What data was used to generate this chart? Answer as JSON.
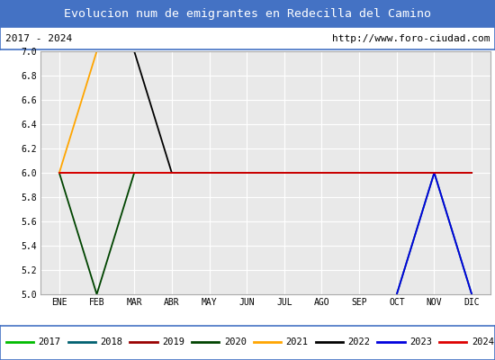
{
  "title": "Evolucion num de emigrantes en Redecilla del Camino",
  "subtitle_left": "2017 - 2024",
  "subtitle_right": "http://www.foro-ciudad.com",
  "x_labels": [
    "ENE",
    "FEB",
    "MAR",
    "ABR",
    "MAY",
    "JUN",
    "JUL",
    "AGO",
    "SEP",
    "OCT",
    "NOV",
    "DIC"
  ],
  "ylim": [
    5.0,
    7.0
  ],
  "yticks": [
    5.0,
    5.2,
    5.4,
    5.6,
    5.8,
    6.0,
    6.2,
    6.4,
    6.6,
    6.8,
    7.0
  ],
  "series": [
    {
      "label": "2017",
      "color": "#00bb00",
      "data": [
        [
          0,
          6
        ],
        [
          11,
          6
        ]
      ]
    },
    {
      "label": "2018",
      "color": "#006070",
      "data": [
        [
          9,
          5
        ],
        [
          10,
          6
        ],
        [
          11,
          5
        ]
      ]
    },
    {
      "label": "2019",
      "color": "#990000",
      "data": [
        [
          0,
          6
        ],
        [
          11,
          6
        ]
      ]
    },
    {
      "label": "2020",
      "color": "#004400",
      "data": [
        [
          0,
          6
        ],
        [
          1,
          5
        ],
        [
          2,
          6
        ]
      ]
    },
    {
      "label": "2021",
      "color": "#FFA500",
      "data": [
        [
          0,
          6
        ],
        [
          1,
          7
        ],
        [
          11,
          7
        ]
      ]
    },
    {
      "label": "2022",
      "color": "#000000",
      "data": [
        [
          2,
          7
        ],
        [
          3,
          6
        ],
        [
          11,
          6
        ]
      ]
    },
    {
      "label": "2023",
      "color": "#0000dd",
      "data": [
        [
          9,
          5
        ],
        [
          10,
          6
        ],
        [
          11,
          5
        ]
      ]
    },
    {
      "label": "2024",
      "color": "#dd0000",
      "data": [
        [
          0,
          6
        ],
        [
          11,
          6
        ]
      ]
    }
  ],
  "title_bg": "#4472c4",
  "title_color": "#ffffff",
  "subtitle_bg": "#ffffff",
  "subtitle_color": "#000000",
  "plot_bg": "#e9e9e9",
  "grid_color": "#ffffff",
  "legend_bg": "#ffffff",
  "legend_border": "#4472c4",
  "fig_width": 5.5,
  "fig_height": 4.0,
  "dpi": 100
}
